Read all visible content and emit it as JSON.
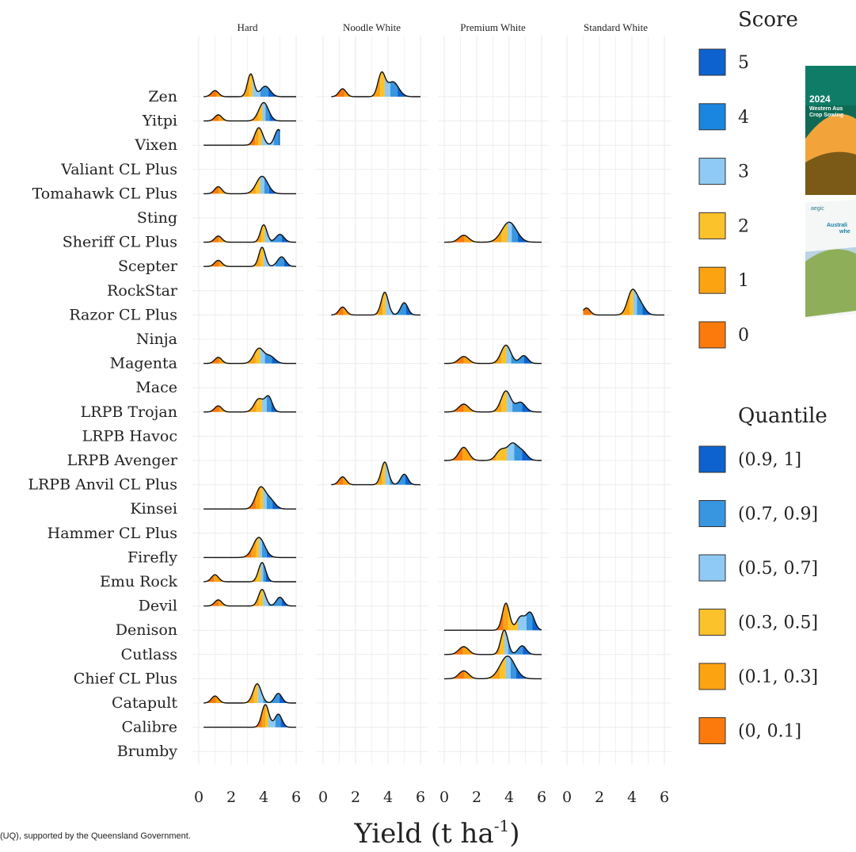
{
  "chart_data": {
    "type": "ridgeline",
    "facets": [
      "Hard",
      "Noodle White",
      "Premium White",
      "Standard White"
    ],
    "varieties": [
      "Zen",
      "Yitpi",
      "Vixen",
      "Valiant CL Plus",
      "Tomahawk CL Plus",
      "Sting",
      "Sheriff CL Plus",
      "Scepter",
      "RockStar",
      "Razor CL Plus",
      "Ninja",
      "Magenta",
      "Mace",
      "LRPB Trojan",
      "LRPB Havoc",
      "LRPB Avenger",
      "LRPB Anvil CL Plus",
      "Kinsei",
      "Hammer CL Plus",
      "Firefly",
      "Emu Rock",
      "Devil",
      "Denison",
      "Cutlass",
      "Chief CL Plus",
      "Catapult",
      "Calibre",
      "Brumby"
    ],
    "xlim": [
      0,
      6
    ],
    "x_ticks": [
      0,
      2,
      4,
      6
    ],
    "x_tick_labels": [
      "0",
      "2",
      "4",
      "6"
    ],
    "xlabel": "Yield (t ha-1)",
    "xlabel_base": "Yield (t ha",
    "xlabel_sup": "-1",
    "xlabel_end": ")",
    "grid": true,
    "score_legend": {
      "title": "Score",
      "items": [
        {
          "label": "5",
          "color": "#0d62cf"
        },
        {
          "label": "4",
          "color": "#1a86e0"
        },
        {
          "label": "3",
          "color": "#8ecaf3"
        },
        {
          "label": "2",
          "color": "#fcc22b"
        },
        {
          "label": "1",
          "color": "#fca312"
        },
        {
          "label": "0",
          "color": "#fc7a0c"
        }
      ]
    },
    "quantile_legend": {
      "title": "Quantile",
      "items": [
        {
          "label": "(0.9, 1]",
          "color": "#0d62cf"
        },
        {
          "label": "(0.7, 0.9]",
          "color": "#3895e0"
        },
        {
          "label": "(0.5, 0.7]",
          "color": "#8ecaf3"
        },
        {
          "label": "(0.3, 0.5]",
          "color": "#fcc22b"
        },
        {
          "label": "(0.1, 0.3]",
          "color": "#fca312"
        },
        {
          "label": "(0, 0.1]",
          "color": "#fc7a0c"
        }
      ]
    },
    "band_colors": [
      "#fc7a0c",
      "#fca312",
      "#fcc22b",
      "#8ecaf3",
      "#3895e0",
      "#0d62cf"
    ],
    "band_quantiles": [
      0.1,
      0.3,
      0.5,
      0.7,
      0.9
    ],
    "ridges": [
      {
        "facet": "Hard",
        "variety": "Zen",
        "xmin": 0.3,
        "xmax": 6.0,
        "peaks": [
          [
            1.0,
            0.35,
            0.22
          ],
          [
            3.2,
            1.3,
            0.2
          ],
          [
            4.1,
            0.6,
            0.3
          ]
        ]
      },
      {
        "facet": "Hard",
        "variety": "Yitpi",
        "xmin": 0.3,
        "xmax": 6.0,
        "peaks": [
          [
            1.2,
            0.35,
            0.22
          ],
          [
            4.0,
            1.05,
            0.3
          ]
        ]
      },
      {
        "facet": "Hard",
        "variety": "Vixen",
        "xmin": 0.3,
        "xmax": 5.0,
        "peaks": [
          [
            3.7,
            1.0,
            0.25
          ],
          [
            4.9,
            0.9,
            0.22
          ]
        ]
      },
      {
        "facet": "Hard",
        "variety": "Tomahawk CL Plus",
        "xmin": 0.3,
        "xmax": 6.0,
        "peaks": [
          [
            1.2,
            0.4,
            0.22
          ],
          [
            3.9,
            1.0,
            0.35
          ]
        ]
      },
      {
        "facet": "Hard",
        "variety": "Sheriff CL Plus",
        "xmin": 0.3,
        "xmax": 6.0,
        "peaks": [
          [
            1.2,
            0.35,
            0.22
          ],
          [
            4.0,
            1.0,
            0.2
          ],
          [
            5.0,
            0.45,
            0.25
          ]
        ]
      },
      {
        "facet": "Hard",
        "variety": "Scepter",
        "xmin": 0.3,
        "xmax": 6.0,
        "peaks": [
          [
            1.2,
            0.35,
            0.22
          ],
          [
            3.9,
            1.1,
            0.2
          ],
          [
            5.1,
            0.55,
            0.25
          ]
        ]
      },
      {
        "facet": "Hard",
        "variety": "Magenta",
        "xmin": 0.3,
        "xmax": 6.0,
        "peaks": [
          [
            1.2,
            0.35,
            0.22
          ],
          [
            3.7,
            0.85,
            0.3
          ],
          [
            4.4,
            0.4,
            0.3
          ]
        ]
      },
      {
        "facet": "Hard",
        "variety": "LRPB Trojan",
        "xmin": 0.3,
        "xmax": 6.0,
        "peaks": [
          [
            1.2,
            0.35,
            0.22
          ],
          [
            3.7,
            0.75,
            0.28
          ],
          [
            4.3,
            0.85,
            0.22
          ]
        ]
      },
      {
        "facet": "Hard",
        "variety": "Kinsei",
        "xmin": 0.3,
        "xmax": 6.0,
        "peaks": [
          [
            3.8,
            1.2,
            0.3
          ],
          [
            4.4,
            0.5,
            0.3
          ]
        ]
      },
      {
        "facet": "Hard",
        "variety": "Firefly",
        "xmin": 0.3,
        "xmax": 6.0,
        "peaks": [
          [
            3.7,
            1.15,
            0.35
          ]
        ]
      },
      {
        "facet": "Hard",
        "variety": "Emu Rock",
        "xmin": 0.3,
        "xmax": 6.0,
        "peaks": [
          [
            1.0,
            0.4,
            0.22
          ],
          [
            3.9,
            1.1,
            0.22
          ]
        ]
      },
      {
        "facet": "Hard",
        "variety": "Devil",
        "xmin": 0.3,
        "xmax": 6.0,
        "peaks": [
          [
            1.2,
            0.35,
            0.22
          ],
          [
            3.9,
            0.95,
            0.22
          ],
          [
            5.0,
            0.5,
            0.22
          ]
        ]
      },
      {
        "facet": "Hard",
        "variety": "Catapult",
        "xmin": 0.3,
        "xmax": 6.0,
        "peaks": [
          [
            1.0,
            0.4,
            0.22
          ],
          [
            3.6,
            1.1,
            0.25
          ],
          [
            4.9,
            0.55,
            0.22
          ]
        ]
      },
      {
        "facet": "Hard",
        "variety": "Calibre",
        "xmin": 0.3,
        "xmax": 6.0,
        "peaks": [
          [
            4.1,
            1.3,
            0.22
          ],
          [
            4.9,
            0.75,
            0.22
          ]
        ]
      },
      {
        "facet": "Noodle White",
        "variety": "Zen",
        "xmin": 0.5,
        "xmax": 6.0,
        "peaks": [
          [
            1.2,
            0.45,
            0.22
          ],
          [
            3.6,
            1.3,
            0.22
          ],
          [
            4.3,
            0.85,
            0.35
          ]
        ]
      },
      {
        "facet": "Noodle White",
        "variety": "Razor CL Plus",
        "xmin": 0.5,
        "xmax": 6.0,
        "peaks": [
          [
            1.2,
            0.45,
            0.22
          ],
          [
            3.8,
            1.3,
            0.22
          ],
          [
            5.0,
            0.7,
            0.22
          ]
        ]
      },
      {
        "facet": "Noodle White",
        "variety": "LRPB Anvil CL Plus",
        "xmin": 0.5,
        "xmax": 6.0,
        "peaks": [
          [
            1.2,
            0.45,
            0.22
          ],
          [
            3.8,
            1.3,
            0.22
          ],
          [
            5.0,
            0.6,
            0.22
          ]
        ]
      },
      {
        "facet": "Premium White",
        "variety": "Sheriff CL Plus",
        "xmin": 0.0,
        "xmax": 6.0,
        "peaks": [
          [
            1.2,
            0.4,
            0.3
          ],
          [
            4.0,
            1.15,
            0.45
          ]
        ]
      },
      {
        "facet": "Premium White",
        "variety": "Magenta",
        "xmin": 0.0,
        "xmax": 6.0,
        "peaks": [
          [
            1.2,
            0.4,
            0.3
          ],
          [
            3.8,
            1.05,
            0.3
          ],
          [
            4.9,
            0.45,
            0.25
          ]
        ]
      },
      {
        "facet": "Premium White",
        "variety": "LRPB Trojan",
        "xmin": 0.0,
        "xmax": 6.0,
        "peaks": [
          [
            1.2,
            0.45,
            0.3
          ],
          [
            3.8,
            1.2,
            0.3
          ],
          [
            4.7,
            0.55,
            0.3
          ]
        ]
      },
      {
        "facet": "Premium White",
        "variety": "LRPB Avenger",
        "xmin": 0.0,
        "xmax": 6.0,
        "peaks": [
          [
            1.2,
            0.75,
            0.3
          ],
          [
            3.5,
            0.6,
            0.3
          ],
          [
            4.2,
            0.9,
            0.3
          ],
          [
            4.8,
            0.5,
            0.3
          ]
        ]
      },
      {
        "facet": "Premium White",
        "variety": "Denison",
        "xmin": 0.0,
        "xmax": 6.0,
        "peaks": [
          [
            3.8,
            1.55,
            0.22
          ],
          [
            4.7,
            0.75,
            0.25
          ],
          [
            5.3,
            1.0,
            0.25
          ]
        ]
      },
      {
        "facet": "Premium White",
        "variety": "Cutlass",
        "xmin": 0.0,
        "xmax": 6.0,
        "peaks": [
          [
            1.2,
            0.45,
            0.3
          ],
          [
            3.7,
            1.4,
            0.22
          ],
          [
            4.8,
            0.5,
            0.25
          ]
        ]
      },
      {
        "facet": "Premium White",
        "variety": "Chief CL Plus",
        "xmin": 0.0,
        "xmax": 6.0,
        "peaks": [
          [
            1.2,
            0.45,
            0.3
          ],
          [
            3.9,
            1.3,
            0.45
          ]
        ]
      },
      {
        "facet": "Standard White",
        "variety": "Razor CL Plus",
        "xmin": 1.0,
        "xmax": 6.0,
        "peaks": [
          [
            1.2,
            0.4,
            0.22
          ],
          [
            4.0,
            1.3,
            0.28
          ],
          [
            4.5,
            0.6,
            0.3
          ]
        ]
      }
    ]
  },
  "caption": "(UQ), supported by the Queensland Government.",
  "thumbnails": {
    "top_year": "2024",
    "top_line1": "Western Aus",
    "top_line2": "Crop Sowing",
    "bottom_brand": "aegic",
    "bottom_line1": "Australi",
    "bottom_line2": "whe"
  }
}
